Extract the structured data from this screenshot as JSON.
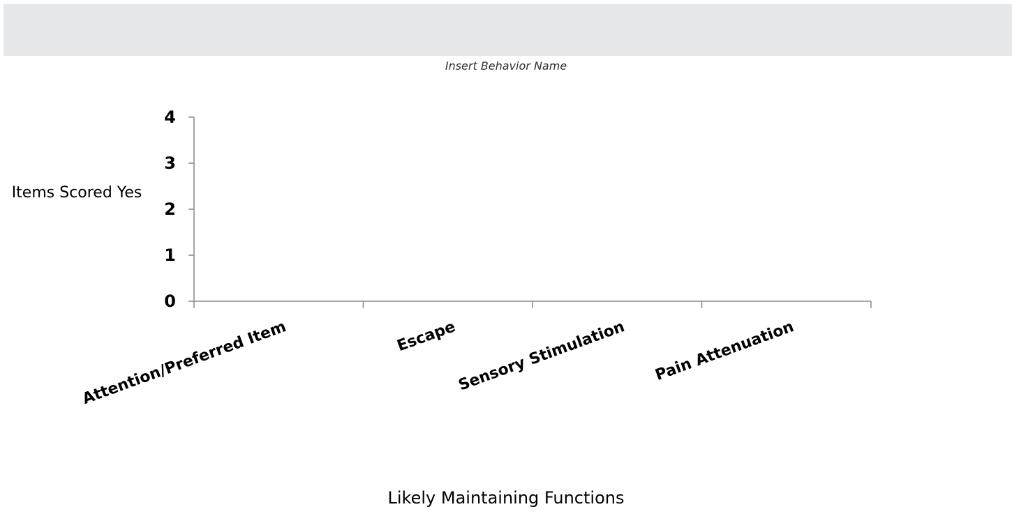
{
  "chart_data": {
    "type": "bar",
    "title": "",
    "subtitle": "Insert Behavior Name",
    "xlabel": "Likely Maintaining  Functions",
    "ylabel": "Items Scored Yes",
    "categories": [
      "Attention/Preferred Item",
      "Escape",
      "Sensory Stimulation",
      "Pain Attenuation"
    ],
    "ylim": [
      0,
      4
    ],
    "yticks": [
      "0",
      "1",
      "2",
      "3",
      "4"
    ],
    "series": [
      {
        "values": [
          0,
          0,
          0,
          0
        ]
      }
    ],
    "grid": false,
    "legend": "none"
  },
  "colors": {
    "axis": "#888888",
    "top_band": "#e6e7e8",
    "bar": "#4f81bd"
  }
}
